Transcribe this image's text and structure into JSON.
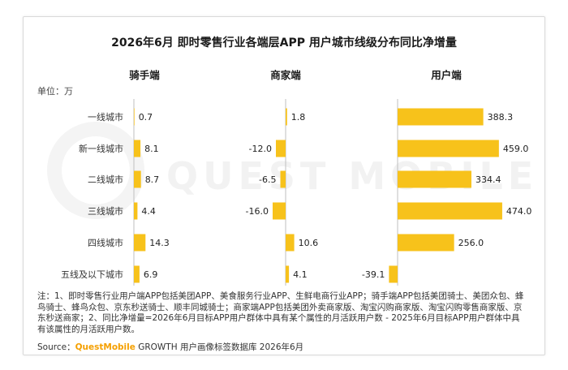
{
  "chart_data": {
    "type": "bar",
    "orientation": "horizontal",
    "title": "2026年6月 即时零售行业各端层APP 用户城市线级分布同比净增量",
    "unit_label": "单位：万",
    "categories": [
      "一线城市",
      "新一线城市",
      "二线城市",
      "三线城市",
      "四线城市",
      "五线及以下城市"
    ],
    "series": [
      {
        "name": "骑手端",
        "values": [
          0.7,
          8.1,
          8.7,
          4.4,
          14.3,
          6.9
        ],
        "labels": [
          "0.7",
          "8.1",
          "8.7",
          "4.4",
          "14.3",
          "6.9"
        ]
      },
      {
        "name": "商家端",
        "values": [
          1.8,
          -12.0,
          -6.5,
          -16.0,
          10.6,
          4.1
        ],
        "labels": [
          "1.8",
          "-12.0",
          "-6.5",
          "-16.0",
          "10.6",
          "4.1"
        ]
      },
      {
        "name": "用户端",
        "values": [
          388.3,
          459.0,
          334.4,
          474.0,
          256.0,
          -39.1
        ],
        "labels": [
          "388.3",
          "459.0",
          "334.4",
          "474.0",
          "256.0",
          "-39.1"
        ]
      }
    ],
    "bar_color": "#f7c21b",
    "axis_color": "#bfbfbf",
    "grid": false
  },
  "note": "注：1、即时零售行业用户端APP包括美团APP、美食服务行业APP、生鲜电商行业APP；骑手端APP包括美团骑士、美团众包、蜂鸟骑士、蜂鸟众包、京东秒送骑士、顺丰同城骑士；商家端APP包括美团外卖商家版、淘宝闪购商家版、淘宝闪购零售商家版、京东秒送商家；2、同比净增量=2026年6月目标APP用户群体中具有某个属性的月活跃用户数 - 2025年6月目标APP用户群体中具有该属性的月活跃用户数。",
  "source": {
    "prefix": "Source：",
    "brand": "QuestMobile",
    "rest": " GROWTH 用户画像标签数据库 2026年6月"
  },
  "watermark": "QUEST MOBILE"
}
